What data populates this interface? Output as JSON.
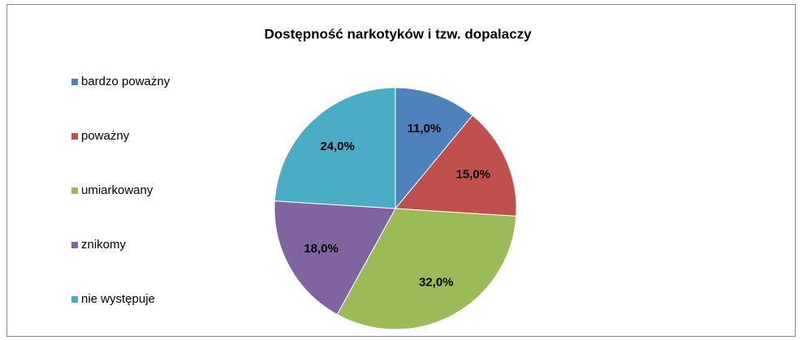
{
  "chart_data": {
    "type": "pie",
    "title": "Dostępność narkotyków i tzw. dopalaczy",
    "categories": [
      "bardzo poważny",
      "poważny",
      "umiarkowany",
      "znikomy",
      "nie występuje"
    ],
    "values": [
      11,
      15,
      32,
      18,
      24
    ],
    "value_labels": [
      "11,0%",
      "15,0%",
      "32,0%",
      "18,0%",
      "24,0%"
    ],
    "colors": [
      "#4f81bd",
      "#c0504d",
      "#9bbb59",
      "#8064a2",
      "#4bacc6"
    ],
    "legend": "left"
  }
}
